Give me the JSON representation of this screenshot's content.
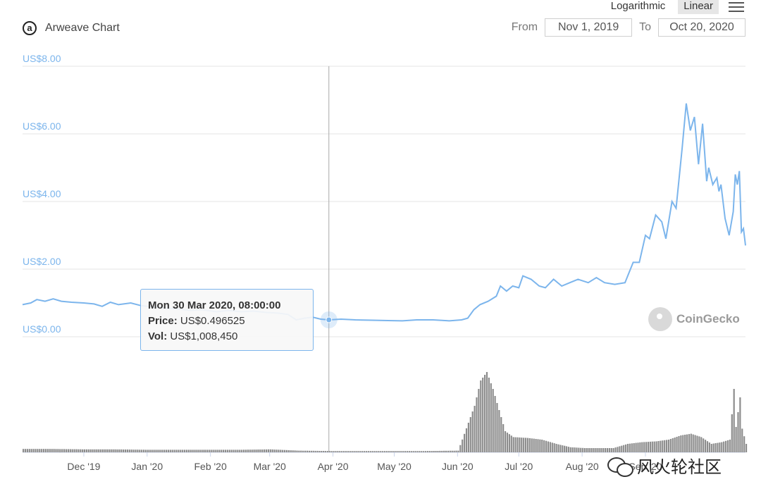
{
  "header": {
    "logo_letter": "a",
    "title": "Arweave Chart",
    "scale_options": [
      "Logarithmic",
      "Linear"
    ],
    "active_scale": "Linear",
    "from_label": "From",
    "from_value": "Nov 1, 2019",
    "to_label": "To",
    "to_value": "Oct 20, 2020"
  },
  "tooltip": {
    "date": "Mon 30 Mar 2020, 08:00:00",
    "price_label": "Price:",
    "price_value": "US$0.496525",
    "vol_label": "Vol:",
    "vol_value": "US$1,008,450"
  },
  "credit": "CoinGecko",
  "watermark": "风火轮社区",
  "colors": {
    "price_line": "#7cb5ec",
    "volume_bar": "#8c8c8c",
    "axis_label": "#7cb5ec"
  },
  "chart_data": {
    "type": "line",
    "y_unit_prefix": "US$",
    "ylim": [
      0,
      8
    ],
    "y_ticks": [
      "US$0.00",
      "US$2.00",
      "US$4.00",
      "US$6.00",
      "US$8.00"
    ],
    "x_range": [
      "2019-11-01",
      "2020-10-20"
    ],
    "x_ticks": [
      {
        "label": "Dec '19",
        "date": "2019-12-01"
      },
      {
        "label": "Jan '20",
        "date": "2020-01-01"
      },
      {
        "label": "Feb '20",
        "date": "2020-02-01"
      },
      {
        "label": "Mar '20",
        "date": "2020-03-01"
      },
      {
        "label": "Apr '20",
        "date": "2020-04-01"
      },
      {
        "label": "May '20",
        "date": "2020-05-01"
      },
      {
        "label": "Jun '20",
        "date": "2020-06-01"
      },
      {
        "label": "Jul '20",
        "date": "2020-07-01"
      },
      {
        "label": "Aug '20",
        "date": "2020-08-01"
      },
      {
        "label": "Sep '20",
        "date": "2020-09-01"
      }
    ],
    "crosshair_date": "2020-03-30",
    "grid": true,
    "series": [
      {
        "kind": "price",
        "points": [
          [
            "2019-11-01",
            0.95
          ],
          [
            "2019-11-05",
            1.0
          ],
          [
            "2019-11-08",
            1.1
          ],
          [
            "2019-11-12",
            1.05
          ],
          [
            "2019-11-16",
            1.12
          ],
          [
            "2019-11-20",
            1.05
          ],
          [
            "2019-11-25",
            1.02
          ],
          [
            "2019-12-01",
            1.0
          ],
          [
            "2019-12-06",
            0.97
          ],
          [
            "2019-12-10",
            0.9
          ],
          [
            "2019-12-14",
            1.02
          ],
          [
            "2019-12-18",
            0.95
          ],
          [
            "2019-12-24",
            1.0
          ],
          [
            "2019-12-29",
            0.92
          ],
          [
            "2020-01-04",
            0.88
          ],
          [
            "2020-01-10",
            0.85
          ],
          [
            "2020-01-16",
            0.82
          ],
          [
            "2020-01-22",
            0.78
          ],
          [
            "2020-01-28",
            0.8
          ],
          [
            "2020-02-04",
            0.74
          ],
          [
            "2020-02-10",
            0.78
          ],
          [
            "2020-02-16",
            0.74
          ],
          [
            "2020-02-22",
            0.76
          ],
          [
            "2020-02-28",
            0.72
          ],
          [
            "2020-03-05",
            0.7
          ],
          [
            "2020-03-10",
            0.66
          ],
          [
            "2020-03-14",
            0.5
          ],
          [
            "2020-03-18",
            0.55
          ],
          [
            "2020-03-22",
            0.58
          ],
          [
            "2020-03-26",
            0.52
          ],
          [
            "2020-03-30",
            0.5
          ],
          [
            "2020-04-05",
            0.52
          ],
          [
            "2020-04-12",
            0.5
          ],
          [
            "2020-04-20",
            0.49
          ],
          [
            "2020-04-28",
            0.48
          ],
          [
            "2020-05-05",
            0.47
          ],
          [
            "2020-05-12",
            0.5
          ],
          [
            "2020-05-20",
            0.5
          ],
          [
            "2020-05-28",
            0.47
          ],
          [
            "2020-06-03",
            0.5
          ],
          [
            "2020-06-06",
            0.55
          ],
          [
            "2020-06-09",
            0.8
          ],
          [
            "2020-06-12",
            0.95
          ],
          [
            "2020-06-16",
            1.05
          ],
          [
            "2020-06-20",
            1.2
          ],
          [
            "2020-06-22",
            1.5
          ],
          [
            "2020-06-25",
            1.35
          ],
          [
            "2020-06-28",
            1.5
          ],
          [
            "2020-07-01",
            1.45
          ],
          [
            "2020-07-03",
            1.8
          ],
          [
            "2020-07-07",
            1.7
          ],
          [
            "2020-07-11",
            1.5
          ],
          [
            "2020-07-14",
            1.45
          ],
          [
            "2020-07-18",
            1.7
          ],
          [
            "2020-07-22",
            1.5
          ],
          [
            "2020-07-26",
            1.6
          ],
          [
            "2020-07-30",
            1.7
          ],
          [
            "2020-08-04",
            1.6
          ],
          [
            "2020-08-08",
            1.75
          ],
          [
            "2020-08-12",
            1.6
          ],
          [
            "2020-08-17",
            1.55
          ],
          [
            "2020-08-22",
            1.6
          ],
          [
            "2020-08-26",
            2.2
          ],
          [
            "2020-08-29",
            2.2
          ],
          [
            "2020-09-01",
            3.0
          ],
          [
            "2020-09-03",
            2.9
          ],
          [
            "2020-09-06",
            3.6
          ],
          [
            "2020-09-09",
            3.4
          ],
          [
            "2020-09-11",
            2.9
          ],
          [
            "2020-09-14",
            4.0
          ],
          [
            "2020-09-16",
            3.8
          ],
          [
            "2020-09-19",
            5.6
          ],
          [
            "2020-09-21",
            6.9
          ],
          [
            "2020-09-23",
            6.1
          ],
          [
            "2020-09-25",
            6.5
          ],
          [
            "2020-09-27",
            5.1
          ],
          [
            "2020-09-29",
            6.3
          ],
          [
            "2020-10-01",
            4.6
          ],
          [
            "2020-10-02",
            5.0
          ],
          [
            "2020-10-04",
            4.5
          ],
          [
            "2020-10-06",
            4.7
          ],
          [
            "2020-10-07",
            4.3
          ],
          [
            "2020-10-08",
            4.5
          ],
          [
            "2020-10-10",
            3.5
          ],
          [
            "2020-10-12",
            3.0
          ],
          [
            "2020-10-14",
            3.7
          ],
          [
            "2020-10-15",
            4.8
          ],
          [
            "2020-10-16",
            4.5
          ],
          [
            "2020-10-17",
            4.9
          ],
          [
            "2020-10-18",
            3.1
          ],
          [
            "2020-10-19",
            3.2
          ],
          [
            "2020-10-20",
            2.7
          ]
        ]
      },
      {
        "kind": "volume",
        "relative": true,
        "points": [
          [
            "2019-11-01",
            0.04
          ],
          [
            "2019-11-15",
            0.04
          ],
          [
            "2019-12-01",
            0.035
          ],
          [
            "2019-12-15",
            0.035
          ],
          [
            "2020-01-01",
            0.03
          ],
          [
            "2020-01-15",
            0.03
          ],
          [
            "2020-02-01",
            0.03
          ],
          [
            "2020-02-15",
            0.03
          ],
          [
            "2020-03-01",
            0.035
          ],
          [
            "2020-03-15",
            0.02
          ],
          [
            "2020-04-01",
            0.015
          ],
          [
            "2020-04-15",
            0.015
          ],
          [
            "2020-05-01",
            0.015
          ],
          [
            "2020-05-15",
            0.015
          ],
          [
            "2020-06-01",
            0.02
          ],
          [
            "2020-06-06",
            0.35
          ],
          [
            "2020-06-09",
            0.55
          ],
          [
            "2020-06-12",
            0.85
          ],
          [
            "2020-06-15",
            0.95
          ],
          [
            "2020-06-18",
            0.75
          ],
          [
            "2020-06-21",
            0.5
          ],
          [
            "2020-06-24",
            0.25
          ],
          [
            "2020-06-28",
            0.18
          ],
          [
            "2020-07-05",
            0.17
          ],
          [
            "2020-07-12",
            0.15
          ],
          [
            "2020-07-19",
            0.1
          ],
          [
            "2020-07-26",
            0.06
          ],
          [
            "2020-08-02",
            0.05
          ],
          [
            "2020-08-09",
            0.05
          ],
          [
            "2020-08-16",
            0.05
          ],
          [
            "2020-08-23",
            0.1
          ],
          [
            "2020-08-30",
            0.12
          ],
          [
            "2020-09-06",
            0.13
          ],
          [
            "2020-09-12",
            0.15
          ],
          [
            "2020-09-18",
            0.2
          ],
          [
            "2020-09-23",
            0.22
          ],
          [
            "2020-09-28",
            0.18
          ],
          [
            "2020-10-03",
            0.1
          ],
          [
            "2020-10-08",
            0.12
          ],
          [
            "2020-10-12",
            0.15
          ],
          [
            "2020-10-14",
            0.75
          ],
          [
            "2020-10-15",
            0.3
          ],
          [
            "2020-10-17",
            0.65
          ],
          [
            "2020-10-18",
            0.28
          ],
          [
            "2020-10-20",
            0.1
          ]
        ]
      }
    ]
  }
}
